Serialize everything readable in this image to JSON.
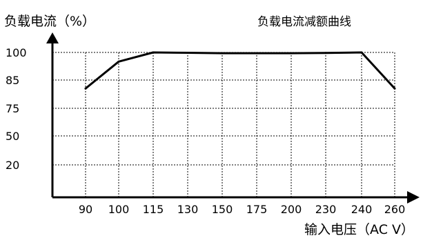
{
  "colors": {
    "line": "#000000",
    "grid": "#000000",
    "axis": "#000000",
    "background": "#ffffff"
  },
  "chart_data": {
    "type": "line",
    "title": "负载电流减额曲线",
    "xlabel": "输入电压（AC V）",
    "ylabel": "负载电流（%）",
    "x": [
      "90",
      "100",
      "115",
      "130",
      "150",
      "175",
      "200",
      "230",
      "240",
      "260"
    ],
    "y_ticks": [
      "100",
      "85",
      "75",
      "50",
      "20"
    ],
    "series": [
      {
        "values": [
          82,
          95,
          100,
          99.8,
          99.6,
          99.6,
          99.6,
          99.7,
          100,
          82
        ]
      }
    ],
    "grid": true,
    "legend": "none"
  }
}
